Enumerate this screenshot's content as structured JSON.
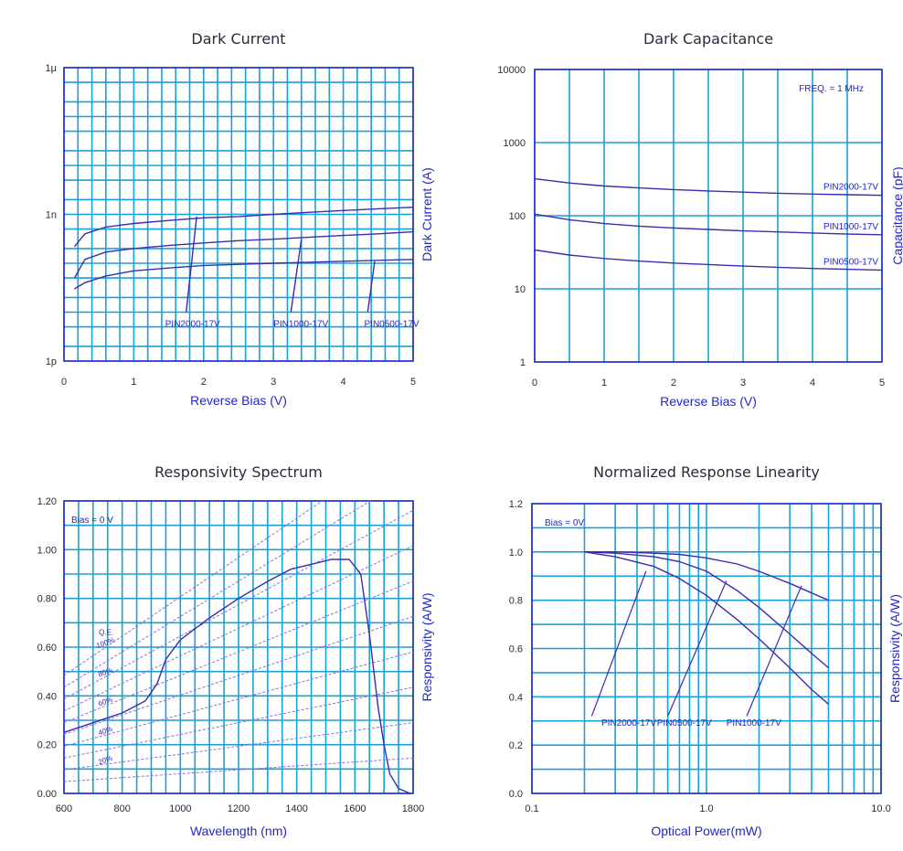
{
  "colors": {
    "grid": "#1aa0d8",
    "curve": "#3a2bb0",
    "frame": "#2326c8",
    "text": "#2a2a3a",
    "label": "#2326c8",
    "qe_line": "#8b6fd6"
  },
  "chart_data": [
    {
      "id": "dark-current",
      "type": "line",
      "title": "Dark Current",
      "xlabel": "Reverse Bias (V)",
      "ylabel": "Dark Current (A)",
      "xlim": [
        0,
        5
      ],
      "ylim": [
        1e-12,
        1e-06
      ],
      "yscale": "log",
      "xticks": [
        "0",
        "1",
        "2",
        "3",
        "4",
        "5"
      ],
      "yticks": [
        {
          "v": 1e-06,
          "label": "1μ"
        },
        {
          "v": 1e-09,
          "label": "1n"
        },
        {
          "v": 1e-12,
          "label": "1p"
        }
      ],
      "series": [
        {
          "name": "PIN2000-17V",
          "x": [
            0.15,
            0.3,
            0.6,
            1,
            1.5,
            2,
            2.5,
            3,
            3.5,
            4,
            4.5,
            5
          ],
          "y": [
            2.2e-10,
            4e-10,
            5.5e-10,
            6.5e-10,
            7.5e-10,
            8.5e-10,
            9e-10,
            1e-09,
            1.1e-09,
            1.2e-09,
            1.3e-09,
            1.4e-09
          ]
        },
        {
          "name": "PIN1000-17V",
          "x": [
            0.15,
            0.3,
            0.6,
            1,
            1.5,
            2,
            2.5,
            3,
            3.5,
            4,
            4.5,
            5
          ],
          "y": [
            5e-11,
            1.2e-10,
            1.7e-10,
            2e-10,
            2.3e-10,
            2.6e-10,
            2.9e-10,
            3.1e-10,
            3.4e-10,
            3.7e-10,
            4e-10,
            4.4e-10
          ]
        },
        {
          "name": "PIN0500-17V",
          "x": [
            0.15,
            0.3,
            0.6,
            1,
            1.5,
            2,
            2.5,
            3,
            3.5,
            4,
            4.5,
            5
          ],
          "y": [
            3e-11,
            4e-11,
            5.5e-11,
            7e-11,
            8e-11,
            9e-11,
            9.5e-11,
            1e-10,
            1.05e-10,
            1.1e-10,
            1.15e-10,
            1.2e-10
          ]
        }
      ],
      "labels": [
        {
          "text": "PIN2000-17V",
          "x": 1.45,
          "y": 5e-12,
          "lx": [
            1.75,
            1.9
          ],
          "ly": [
            1e-11,
            9e-10
          ]
        },
        {
          "text": "PIN1000-17V",
          "x": 3.0,
          "y": 5e-12,
          "lx": [
            3.25,
            3.4
          ],
          "ly": [
            1e-11,
            3.1e-10
          ]
        },
        {
          "text": "PIN0500-17V",
          "x": 4.3,
          "y": 5e-12,
          "lx": [
            4.35,
            4.45
          ],
          "ly": [
            1e-11,
            1.1e-10
          ]
        }
      ]
    },
    {
      "id": "dark-capacitance",
      "type": "line",
      "title": "Dark Capacitance",
      "xlabel": "Reverse Bias (V)",
      "ylabel": "Capacitance (pF)",
      "xlim": [
        0,
        5
      ],
      "ylim": [
        1,
        10000
      ],
      "yscale": "log",
      "xticks": [
        "0",
        "1",
        "2",
        "3",
        "4",
        "5"
      ],
      "yticks": [
        {
          "v": 10000,
          "label": "10000"
        },
        {
          "v": 1000,
          "label": "1000"
        },
        {
          "v": 100,
          "label": "100"
        },
        {
          "v": 10,
          "label": "10"
        },
        {
          "v": 1,
          "label": "1"
        }
      ],
      "annotation": "FREQ. = 1 MHz",
      "series": [
        {
          "name": "PIN2000-17V",
          "x": [
            0,
            0.5,
            1,
            1.5,
            2,
            2.5,
            3,
            3.5,
            4,
            4.5,
            5
          ],
          "y": [
            320,
            280,
            255,
            240,
            228,
            218,
            210,
            203,
            198,
            194,
            190
          ]
        },
        {
          "name": "PIN1000-17V",
          "x": [
            0,
            0.5,
            1,
            1.5,
            2,
            2.5,
            3,
            3.5,
            4,
            4.5,
            5
          ],
          "y": [
            105,
            88,
            78,
            72,
            68,
            65,
            62,
            60,
            58,
            56,
            55
          ]
        },
        {
          "name": "PIN0500-17V",
          "x": [
            0,
            0.5,
            1,
            1.5,
            2,
            2.5,
            3,
            3.5,
            4,
            4.5,
            5
          ],
          "y": [
            34,
            29,
            26,
            24,
            22.5,
            21.5,
            20.5,
            19.7,
            19,
            18.5,
            18
          ]
        }
      ]
    },
    {
      "id": "responsivity-spectrum",
      "type": "line",
      "title": "Responsivity Spectrum",
      "xlabel": "Wavelength (nm)",
      "ylabel": "Responsivity (A/W)",
      "xlim": [
        600,
        1800
      ],
      "ylim": [
        0,
        1.2
      ],
      "xticks": [
        "600",
        "800",
        "1000",
        "1200",
        "1400",
        "1600",
        "1800"
      ],
      "yticks": [
        "0.00",
        "0.20",
        "0.40",
        "0.60",
        "0.80",
        "1.00",
        "1.20"
      ],
      "annotation": "Bias = 0 V",
      "qe_title": "Q.E.",
      "qe_labels": [
        "100%",
        "80%",
        "60%",
        "40%",
        "20%"
      ],
      "series": [
        {
          "name": "Responsivity",
          "x": [
            600,
            700,
            800,
            880,
            920,
            950,
            1000,
            1100,
            1200,
            1300,
            1380,
            1450,
            1520,
            1580,
            1620,
            1650,
            1680,
            1700,
            1720,
            1750,
            1790
          ],
          "y": [
            0.25,
            0.29,
            0.33,
            0.38,
            0.45,
            0.55,
            0.63,
            0.72,
            0.8,
            0.87,
            0.92,
            0.94,
            0.96,
            0.96,
            0.9,
            0.65,
            0.35,
            0.2,
            0.08,
            0.02,
            0.0
          ]
        }
      ]
    },
    {
      "id": "response-linearity",
      "type": "line",
      "title": "Normalized Response Linearity",
      "xlabel": "Optical Power(mW)",
      "ylabel": "Responsivity (A/W)",
      "xlim": [
        0.1,
        10
      ],
      "ylim": [
        0,
        1.2
      ],
      "xscale": "log",
      "xticks": [
        {
          "v": 0.1,
          "label": "0.1"
        },
        {
          "v": 1,
          "label": "1.0"
        },
        {
          "v": 10,
          "label": "10.0"
        }
      ],
      "yticks": [
        "0.0",
        "0.2",
        "0.4",
        "0.6",
        "0.8",
        "1.0",
        "1.2"
      ],
      "annotation": "Bias = 0V",
      "series": [
        {
          "name": "PIN2000-17V",
          "x": [
            0.2,
            0.3,
            0.5,
            0.7,
            1,
            1.5,
            2,
            3,
            4,
            5
          ],
          "y": [
            1.0,
            0.98,
            0.94,
            0.89,
            0.82,
            0.72,
            0.64,
            0.52,
            0.43,
            0.37
          ]
        },
        {
          "name": "PIN0500-17V",
          "x": [
            0.2,
            0.3,
            0.5,
            0.7,
            1,
            1.5,
            2,
            3,
            4,
            5
          ],
          "y": [
            1.0,
            0.995,
            0.98,
            0.96,
            0.92,
            0.84,
            0.77,
            0.66,
            0.58,
            0.52
          ]
        },
        {
          "name": "PIN1000-17V",
          "x": [
            0.2,
            0.3,
            0.5,
            0.7,
            1,
            1.5,
            2,
            3,
            4,
            5
          ],
          "y": [
            1.0,
            1.0,
            0.995,
            0.99,
            0.975,
            0.95,
            0.92,
            0.87,
            0.83,
            0.8
          ]
        }
      ],
      "labels": [
        {
          "text": "PIN2000-17V",
          "x": 0.25,
          "y": 0.28,
          "lx": [
            0.22,
            0.45
          ],
          "ly": [
            0.32,
            0.92
          ]
        },
        {
          "text": "PIN0500-17V",
          "x": 0.52,
          "y": 0.28,
          "lx": [
            0.6,
            1.3
          ],
          "ly": [
            0.32,
            0.88
          ]
        },
        {
          "text": "PIN1000-17V",
          "x": 1.3,
          "y": 0.28,
          "lx": [
            1.7,
            3.5
          ],
          "ly": [
            0.32,
            0.86
          ]
        }
      ]
    }
  ]
}
